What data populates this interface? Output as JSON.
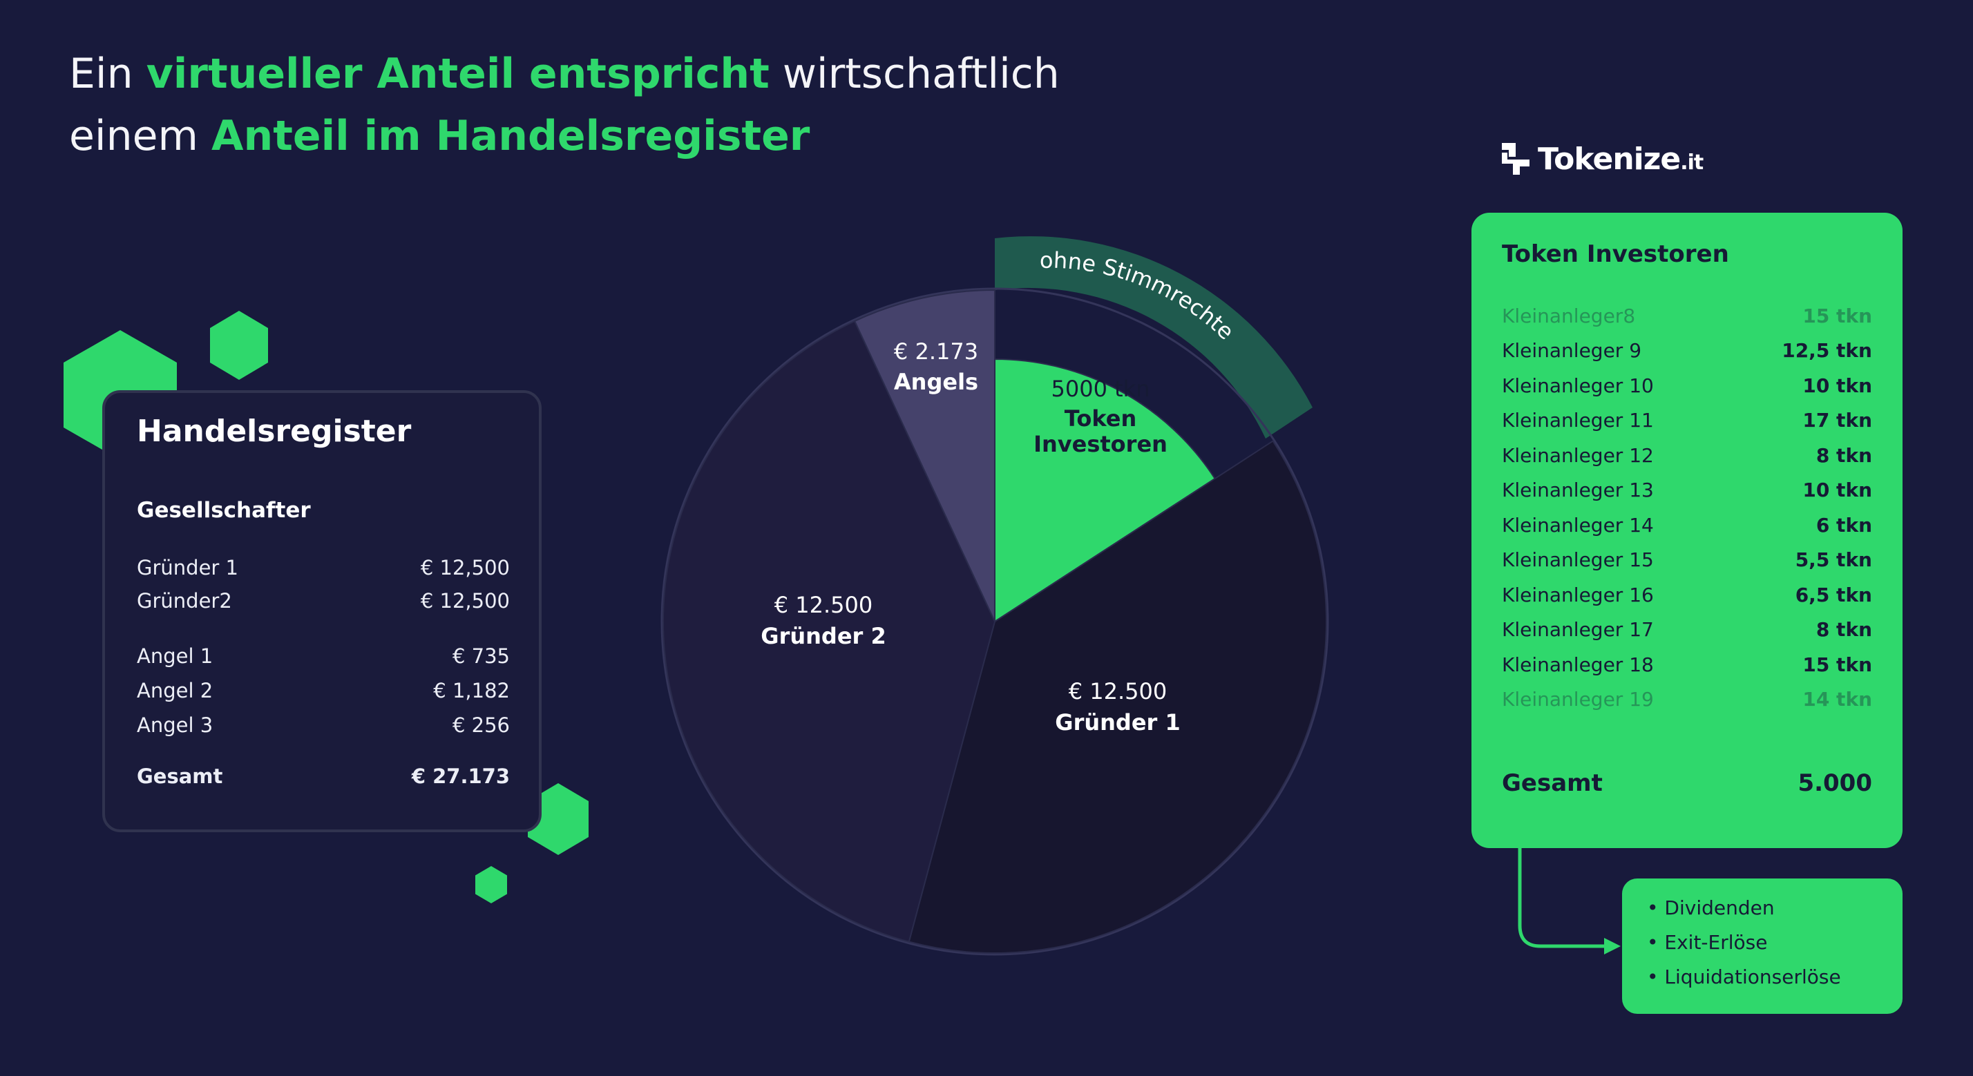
{
  "colors": {
    "background": "#181a3c",
    "accent_green": "#2fd86c",
    "dark_green_band": "#1f5a4e",
    "angels_slice": "#45426b",
    "gruender2_slice": "#1f1d3e",
    "gruender1_slice": "#17162f"
  },
  "title": {
    "line1_part1": "Ein ",
    "line1_highlight": "virtueller Anteil entspricht",
    "line1_part2": " wirtschaftlich",
    "line2_part1": "einem ",
    "line2_highlight": "Anteil im Handelsregister"
  },
  "handelsregister": {
    "title": "Handelsregister",
    "subtitle": "Gesellschafter",
    "rows": [
      {
        "name": "Gründer 1",
        "value": "€ 12,500"
      },
      {
        "name": "Gründer2",
        "value": "€ 12,500"
      },
      {
        "name": "Angel 1",
        "value": "€ 735"
      },
      {
        "name": "Angel 2",
        "value": "€ 1,182"
      },
      {
        "name": "Angel 3",
        "value": "€ 256"
      }
    ],
    "total_label": "Gesamt",
    "total_value": "€ 27.173"
  },
  "chart_data": {
    "type": "pie",
    "slices": [
      {
        "label": "Token Investoren",
        "value_text": "5000 tkn",
        "value": 5000
      },
      {
        "label": "Gründer 1",
        "value_text": "€ 12.500",
        "value": 12500
      },
      {
        "label": "Gründer 2",
        "value_text": "€ 12.500",
        "value": 12500
      },
      {
        "label": "Angels",
        "value_text": "€ 2.173",
        "value": 2173
      }
    ],
    "band_label": "ohne Stimmrechte"
  },
  "logo": {
    "name": "Tokenize",
    "suffix": ".it",
    "icon": "tokenize-logo-icon"
  },
  "token_investoren": {
    "title": "Token Investoren",
    "rows": [
      {
        "name": "Kleinanleger8",
        "amount": "15 tkn",
        "faded": true
      },
      {
        "name": "Kleinanleger 9",
        "amount": "12,5 tkn"
      },
      {
        "name": "Kleinanleger 10",
        "amount": "10 tkn"
      },
      {
        "name": "Kleinanleger 11",
        "amount": "17 tkn"
      },
      {
        "name": "Kleinanleger 12",
        "amount": "8 tkn"
      },
      {
        "name": "Kleinanleger 13",
        "amount": "10 tkn"
      },
      {
        "name": "Kleinanleger 14",
        "amount": "6 tkn"
      },
      {
        "name": "Kleinanleger 15",
        "amount": "5,5 tkn"
      },
      {
        "name": "Kleinanleger 16",
        "amount": "6,5 tkn"
      },
      {
        "name": "Kleinanleger 17",
        "amount": "8 tkn"
      },
      {
        "name": "Kleinanleger 18",
        "amount": "15 tkn"
      },
      {
        "name": "Kleinanleger 19",
        "amount": "14 tkn",
        "faded": true
      }
    ],
    "total_label": "Gesamt",
    "total_value": "5.000"
  },
  "benefits": {
    "items": [
      "• Dividenden",
      "• Exit-Erlöse",
      "• Liquidationserlöse"
    ]
  }
}
